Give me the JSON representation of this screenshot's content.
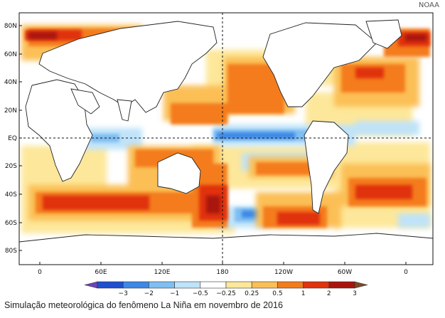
{
  "credit": "NOAA",
  "caption": "Simulação meteorológica do fenômeno La Niña em novembro de 2016",
  "map": {
    "lat_labels": [
      "80N",
      "60N",
      "40N",
      "20N",
      "EQ",
      "20S",
      "40S",
      "60S",
      "80S"
    ],
    "lon_labels": [
      "0",
      "60E",
      "120E",
      "180",
      "120W",
      "60W",
      "0"
    ]
  },
  "colorbar": {
    "ticks": [
      "−3",
      "−2",
      "−1",
      "−0.5",
      "−0.25",
      "0.25",
      "0.5",
      "1",
      "2",
      "3"
    ],
    "colors": [
      "#6b44b8",
      "#1f4fd1",
      "#3c88e6",
      "#7fbef2",
      "#bfe3f9",
      "#ffffff",
      "#fde79a",
      "#fbbf57",
      "#f47b1a",
      "#e0330e",
      "#a8140c",
      "#7a4a2a"
    ]
  }
}
